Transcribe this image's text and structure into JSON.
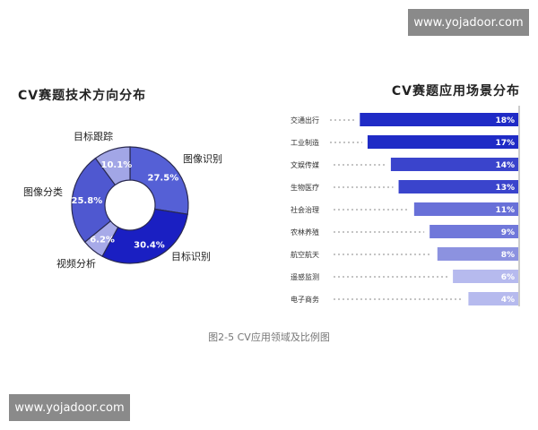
{
  "watermark": "www.yojadoor.com",
  "caption": "图2-5  CV应用领域及比例图",
  "chart_data": [
    {
      "type": "pie",
      "donut": true,
      "title": "CV赛题技术方向分布",
      "slices": [
        {
          "label": "图像识别",
          "value": 27.5,
          "display": "27.5%",
          "color": "#5560d6"
        },
        {
          "label": "目标识别",
          "value": 30.4,
          "display": "30.4%",
          "color": "#1a1fc2"
        },
        {
          "label": "视频分析",
          "value": 6.2,
          "display": "6.2%",
          "color": "#a7aae8"
        },
        {
          "label": "图像分类",
          "value": 25.8,
          "display": "25.8%",
          "color": "#4f58d0"
        },
        {
          "label": "目标跟踪",
          "value": 10.1,
          "display": "10.1%",
          "color": "#a2a6e6"
        }
      ]
    },
    {
      "type": "bar",
      "orientation": "horizontal",
      "title": "CV赛题应用场景分布",
      "categories": [
        "交通出行",
        "工业制造",
        "文娱传媒",
        "生物医疗",
        "社会治理",
        "农林养殖",
        "航空航天",
        "遥感监测",
        "电子商务"
      ],
      "values": [
        18,
        17,
        14,
        13,
        11,
        9,
        8,
        6,
        4
      ],
      "labels": [
        "18%",
        "17%",
        "14%",
        "13%",
        "11%",
        "9%",
        "8%",
        "6%",
        "4%"
      ],
      "colors": [
        "#1f2bc6",
        "#1f2bc6",
        "#3a44cc",
        "#3a44cc",
        "#6870d8",
        "#7078da",
        "#8c92e0",
        "#b6baee",
        "#b6baee"
      ]
    }
  ]
}
